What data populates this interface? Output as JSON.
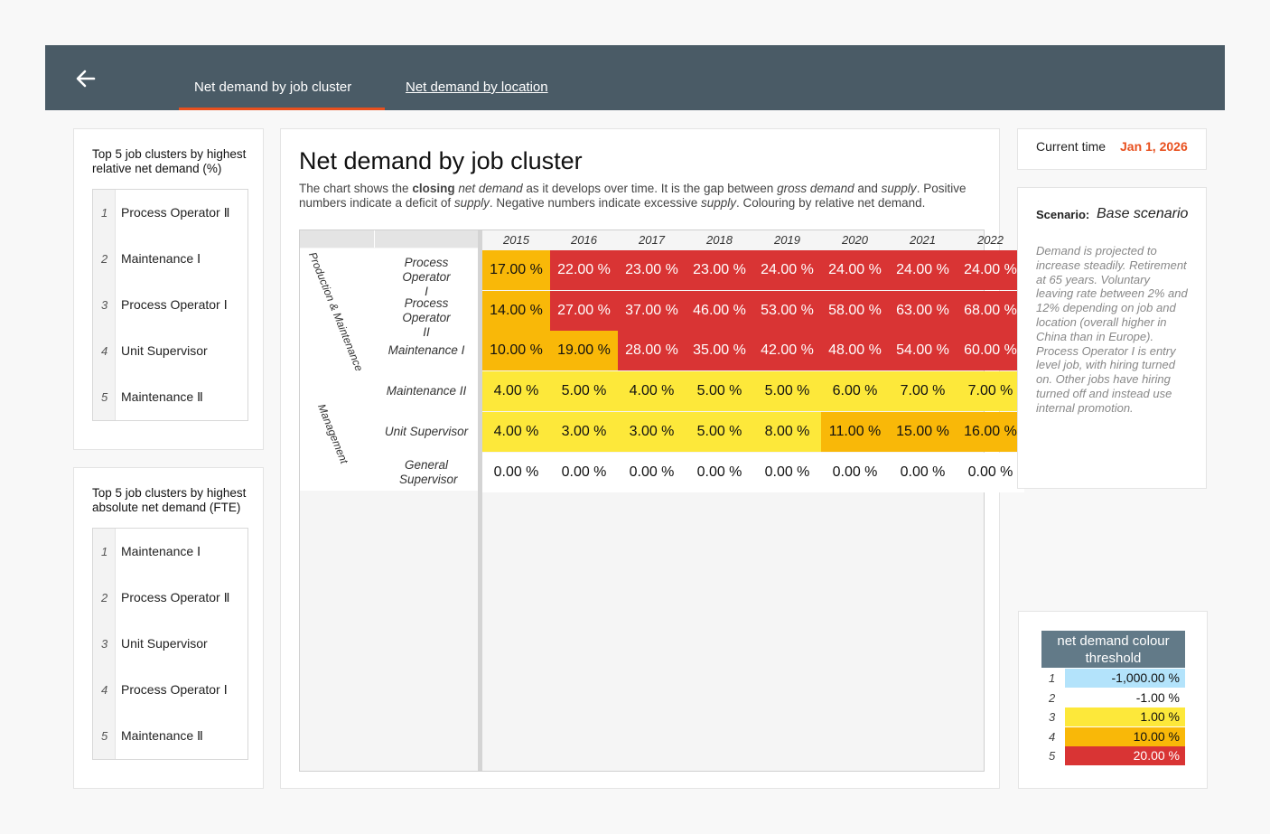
{
  "nav": {
    "back_icon": "arrow-left-icon",
    "tabs": [
      {
        "label": "Net demand by job cluster",
        "active": true
      },
      {
        "label": "Net demand by location",
        "active": false
      }
    ],
    "accent": "#e8501e",
    "bar_color": "#4a5b66"
  },
  "relative_panel": {
    "title": "Top 5 job clusters by highest relative net demand (%)",
    "items": [
      {
        "rank": "1",
        "label": "Process Operator Ⅱ"
      },
      {
        "rank": "2",
        "label": "Maintenance Ⅰ"
      },
      {
        "rank": "3",
        "label": "Process Operator Ⅰ"
      },
      {
        "rank": "4",
        "label": "Unit Supervisor"
      },
      {
        "rank": "5",
        "label": "Maintenance Ⅱ"
      }
    ]
  },
  "absolute_panel": {
    "title": "Top 5 job clusters by highest absolute net demand (FTE)",
    "items": [
      {
        "rank": "1",
        "label": "Maintenance Ⅰ"
      },
      {
        "rank": "2",
        "label": "Process Operator Ⅱ"
      },
      {
        "rank": "3",
        "label": "Unit Supervisor"
      },
      {
        "rank": "4",
        "label": "Process Operator Ⅰ"
      },
      {
        "rank": "5",
        "label": "Maintenance Ⅱ"
      }
    ]
  },
  "main": {
    "title": "Net demand by job cluster",
    "desc": {
      "p1": "The chart shows the ",
      "b1": "closing",
      "p2": " ",
      "i1": "net demand",
      "p3": " as it develops over time. It is the gap between ",
      "i2": "gross demand",
      "p4": " and ",
      "i3": "supply",
      "p5": ". Positive numbers indicate a deficit of ",
      "i4": "supply",
      "p6": ". Negative numbers indicate excessive ",
      "i5": "supply",
      "p7": ". Colouring by relative net demand."
    }
  },
  "chart_data": {
    "type": "heatmap",
    "years": [
      "2015",
      "2016",
      "2017",
      "2018",
      "2019",
      "2020",
      "2021",
      "2022"
    ],
    "groups": [
      {
        "name": "Production & Maintenance",
        "rows": [
          0,
          1,
          2,
          3
        ]
      },
      {
        "name": "Management",
        "rows": [
          4,
          5
        ]
      }
    ],
    "rows": [
      {
        "label": "Process Operator I",
        "values": [
          "17.00 %",
          "22.00 %",
          "23.00 %",
          "23.00 %",
          "24.00 %",
          "24.00 %",
          "24.00 %",
          "24.00 %"
        ],
        "levels": [
          4,
          5,
          5,
          5,
          5,
          5,
          5,
          5
        ]
      },
      {
        "label": "Process Operator II",
        "values": [
          "14.00 %",
          "27.00 %",
          "37.00 %",
          "46.00 %",
          "53.00 %",
          "58.00 %",
          "63.00 %",
          "68.00 %"
        ],
        "levels": [
          4,
          5,
          5,
          5,
          5,
          5,
          5,
          5
        ]
      },
      {
        "label": "Maintenance I",
        "values": [
          "10.00 %",
          "19.00 %",
          "28.00 %",
          "35.00 %",
          "42.00 %",
          "48.00 %",
          "54.00 %",
          "60.00 %"
        ],
        "levels": [
          4,
          4,
          5,
          5,
          5,
          5,
          5,
          5
        ]
      },
      {
        "label": "Maintenance II",
        "values": [
          "4.00 %",
          "5.00 %",
          "4.00 %",
          "5.00 %",
          "5.00 %",
          "6.00 %",
          "7.00 %",
          "7.00 %"
        ],
        "levels": [
          3,
          3,
          3,
          3,
          3,
          3,
          3,
          3
        ]
      },
      {
        "label": "Unit Supervisor",
        "values": [
          "4.00 %",
          "3.00 %",
          "3.00 %",
          "5.00 %",
          "8.00 %",
          "11.00 %",
          "15.00 %",
          "16.00 %"
        ],
        "levels": [
          3,
          3,
          3,
          3,
          3,
          4,
          4,
          4
        ]
      },
      {
        "label": "General Supervisor",
        "values": [
          "0.00 %",
          "0.00 %",
          "0.00 %",
          "0.00 %",
          "0.00 %",
          "0.00 %",
          "0.00 %",
          "0.00 %"
        ],
        "levels": [
          2,
          2,
          2,
          2,
          2,
          2,
          2,
          2
        ]
      }
    ],
    "level_colors": {
      "2": "#ffffff",
      "3": "#fde83a",
      "4": "#f9b808",
      "5": "#d93434"
    }
  },
  "current_time": {
    "label": "Current time",
    "value": "Jan 1, 2026"
  },
  "scenario": {
    "label": "Scenario:",
    "value": "Base scenario",
    "description": "Demand is projected to increase steadily. Retirement at 65 years. Voluntary leaving rate between 2% and 12% depending on job and location (overall higher in China than in Europe). Process Operator I is entry level job, with hiring turned on. Other jobs have hiring turned off and instead use internal promotion."
  },
  "threshold": {
    "title": "net demand colour threshold",
    "rows": [
      {
        "n": "1",
        "value": "-1,000.00 %",
        "color": "#b3e3fb"
      },
      {
        "n": "2",
        "value": "-1.00 %",
        "color": "#ffffff"
      },
      {
        "n": "3",
        "value": "1.00 %",
        "color": "#fde83a"
      },
      {
        "n": "4",
        "value": "10.00 %",
        "color": "#f9b808"
      },
      {
        "n": "5",
        "value": "20.00 %",
        "color": "#d93434"
      }
    ]
  }
}
